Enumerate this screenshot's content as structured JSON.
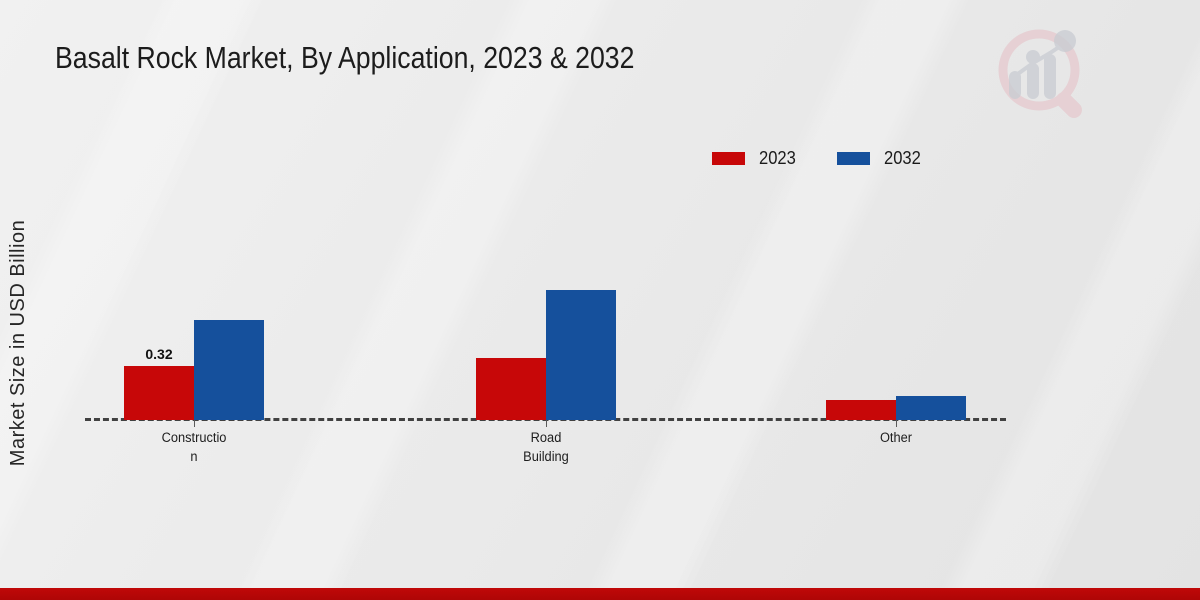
{
  "title": "Basalt Rock Market, By Application, 2023 & 2032",
  "y_axis_label": "Market Size in USD Billion",
  "legend": [
    {
      "label": "2023",
      "color": "#c70708"
    },
    {
      "label": "2032",
      "color": "#15509c"
    }
  ],
  "chart_data": {
    "type": "bar",
    "title": "Basalt Rock Market, By Application, 2023 & 2032",
    "ylabel": "Market Size in USD Billion",
    "xlabel": "",
    "categories": [
      "Construction",
      "Road Building",
      "Other"
    ],
    "category_display_lines": [
      [
        "Constructio",
        "n"
      ],
      [
        "Road",
        "Building"
      ],
      [
        "Other"
      ]
    ],
    "series": [
      {
        "name": "2023",
        "color": "#c70708",
        "values": [
          0.32,
          0.37,
          0.12
        ]
      },
      {
        "name": "2032",
        "color": "#15509c",
        "values": [
          0.59,
          0.77,
          0.14
        ]
      }
    ],
    "data_labels": [
      {
        "series_index": 0,
        "category_index": 0,
        "text": "0.32"
      }
    ],
    "ylim": [
      0,
      0.85
    ],
    "grid": false,
    "baseline_style": "dashed",
    "legend_position": "top-right",
    "units": "USD Billion"
  },
  "colors": {
    "bar_2023": "#c70708",
    "bar_2032": "#15509c",
    "footer_band": "#b50808",
    "baseline": "#414141",
    "background": "#e9e9e9"
  },
  "icons": {
    "brand_logo": "magnifier-bar-chart-watermark"
  }
}
